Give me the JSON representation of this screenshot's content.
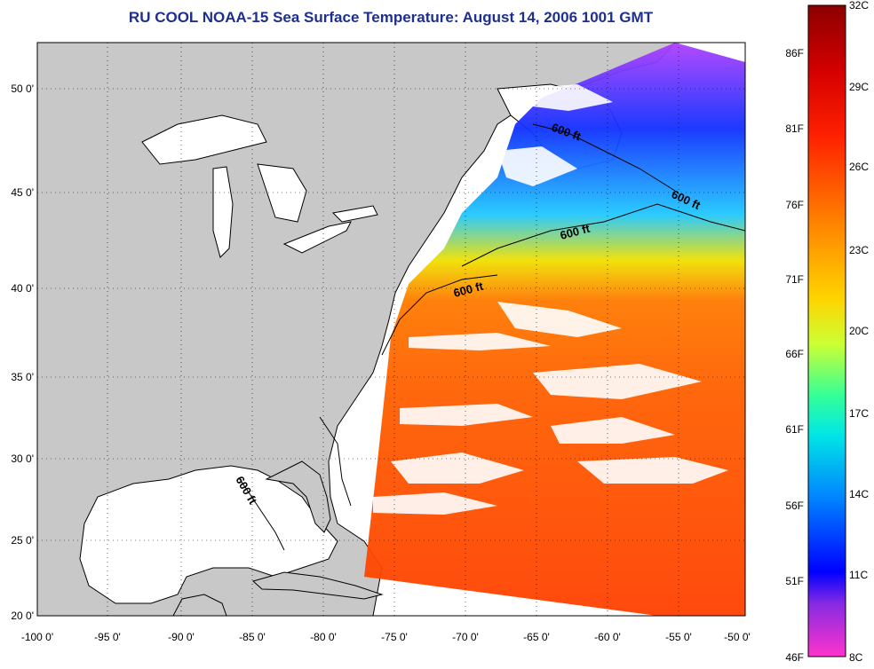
{
  "title": "RU COOL  NOAA-15  Sea Surface Temperature:  August 14, 2006 1001 GMT",
  "map": {
    "lon_labels": [
      "-100 0'",
      "-95 0'",
      "-90 0'",
      "-85 0'",
      "-80 0'",
      "-75 0'",
      "-70 0'",
      "-65 0'",
      "-60 0'",
      "-55 0'",
      "-50 0'"
    ],
    "lat_labels": [
      "50 0'",
      "45 0'",
      "40 0'",
      "35 0'",
      "30 0'",
      "25 0'",
      "20 0'"
    ],
    "contour_labels": [
      "600 ft",
      "600 ft",
      "600 ft",
      "600 ft",
      "600 ft"
    ],
    "land_color": "#c8c8c8",
    "water_color": "#ffffff"
  },
  "colorbar": {
    "celsius_labels": [
      "32C",
      "29C",
      "26C",
      "23C",
      "20C",
      "17C",
      "14C",
      "11C",
      "8C"
    ],
    "fahrenheit_labels": [
      "86F",
      "81F",
      "76F",
      "71F",
      "66F",
      "61F",
      "56F",
      "51F",
      "46F"
    ],
    "colors": [
      "#8b0000",
      "#ff0000",
      "#ff6a00",
      "#ffd400",
      "#99ff33",
      "#00e6e6",
      "#0066ff",
      "#0000ff",
      "#8a2be2",
      "#ff33cc"
    ]
  }
}
